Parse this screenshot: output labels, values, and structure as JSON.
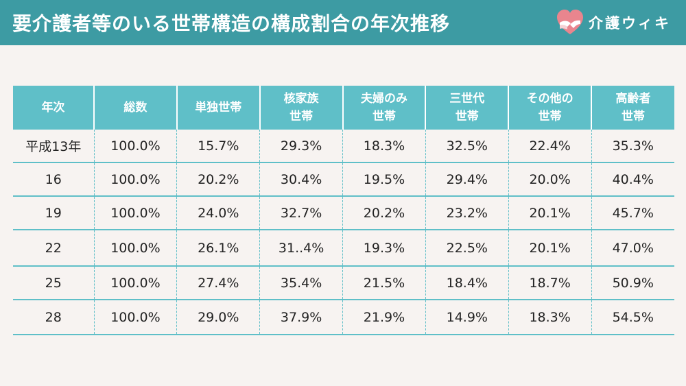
{
  "header": {
    "title": "要介護者等のいる世帯構造の構成割合の年次推移",
    "brand_name": "介護ウィキ",
    "colors": {
      "header_bg": "#3d9ba3",
      "table_header_bg": "#5fbfc8",
      "page_bg": "#f7f3f1"
    }
  },
  "table": {
    "headers": [
      [
        "年次"
      ],
      [
        "総数"
      ],
      [
        "単独世帯"
      ],
      [
        "核家族",
        "世帯"
      ],
      [
        "夫婦のみ",
        "世帯"
      ],
      [
        "三世代",
        "世帯"
      ],
      [
        "その他の",
        "世帯"
      ],
      [
        "高齢者",
        "世帯"
      ]
    ],
    "rows": [
      [
        "平成13年",
        "100.0%",
        "15.7%",
        "29.3%",
        "18.3%",
        "32.5%",
        "22.4%",
        "35.3%"
      ],
      [
        "16",
        "100.0%",
        "20.2%",
        "30.4%",
        "19.5%",
        "29.4%",
        "20.0%",
        "40.4%"
      ],
      [
        "19",
        "100.0%",
        "24.0%",
        "32.7%",
        "20.2%",
        "23.2%",
        "20.1%",
        "45.7%"
      ],
      [
        "22",
        "100.0%",
        "26.1%",
        "31..4%",
        "19.3%",
        "22.5%",
        "20.1%",
        "47.0%"
      ],
      [
        "25",
        "100.0%",
        "27.4%",
        "35.4%",
        "21.5%",
        "18.4%",
        "18.7%",
        "50.9%"
      ],
      [
        "28",
        "100.0%",
        "29.0%",
        "37.9%",
        "21.9%",
        "14.9%",
        "18.3%",
        "54.5%"
      ]
    ]
  }
}
